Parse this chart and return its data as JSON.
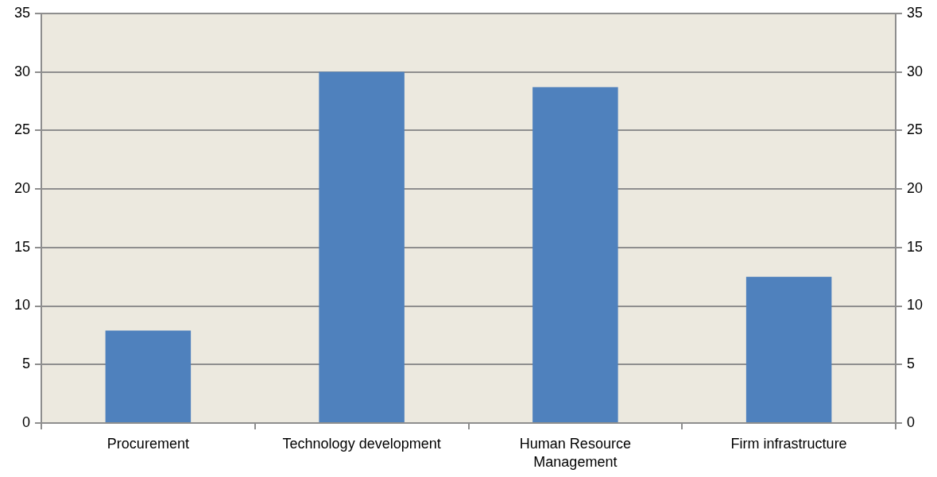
{
  "chart_data": {
    "type": "bar",
    "categories": [
      "Procurement",
      "Technology development",
      "Human Resource Management",
      "Firm infrastructure"
    ],
    "values": [
      7.9,
      30,
      28.7,
      12.5
    ],
    "color": "#4f81bd",
    "ylim": [
      0,
      35
    ],
    "yticks": [
      0,
      5,
      10,
      15,
      20,
      25,
      30,
      35
    ],
    "y2lim": [
      0,
      35
    ],
    "y2ticks": [
      0,
      5,
      10,
      15,
      20,
      25,
      30,
      35
    ],
    "grid": "y"
  }
}
